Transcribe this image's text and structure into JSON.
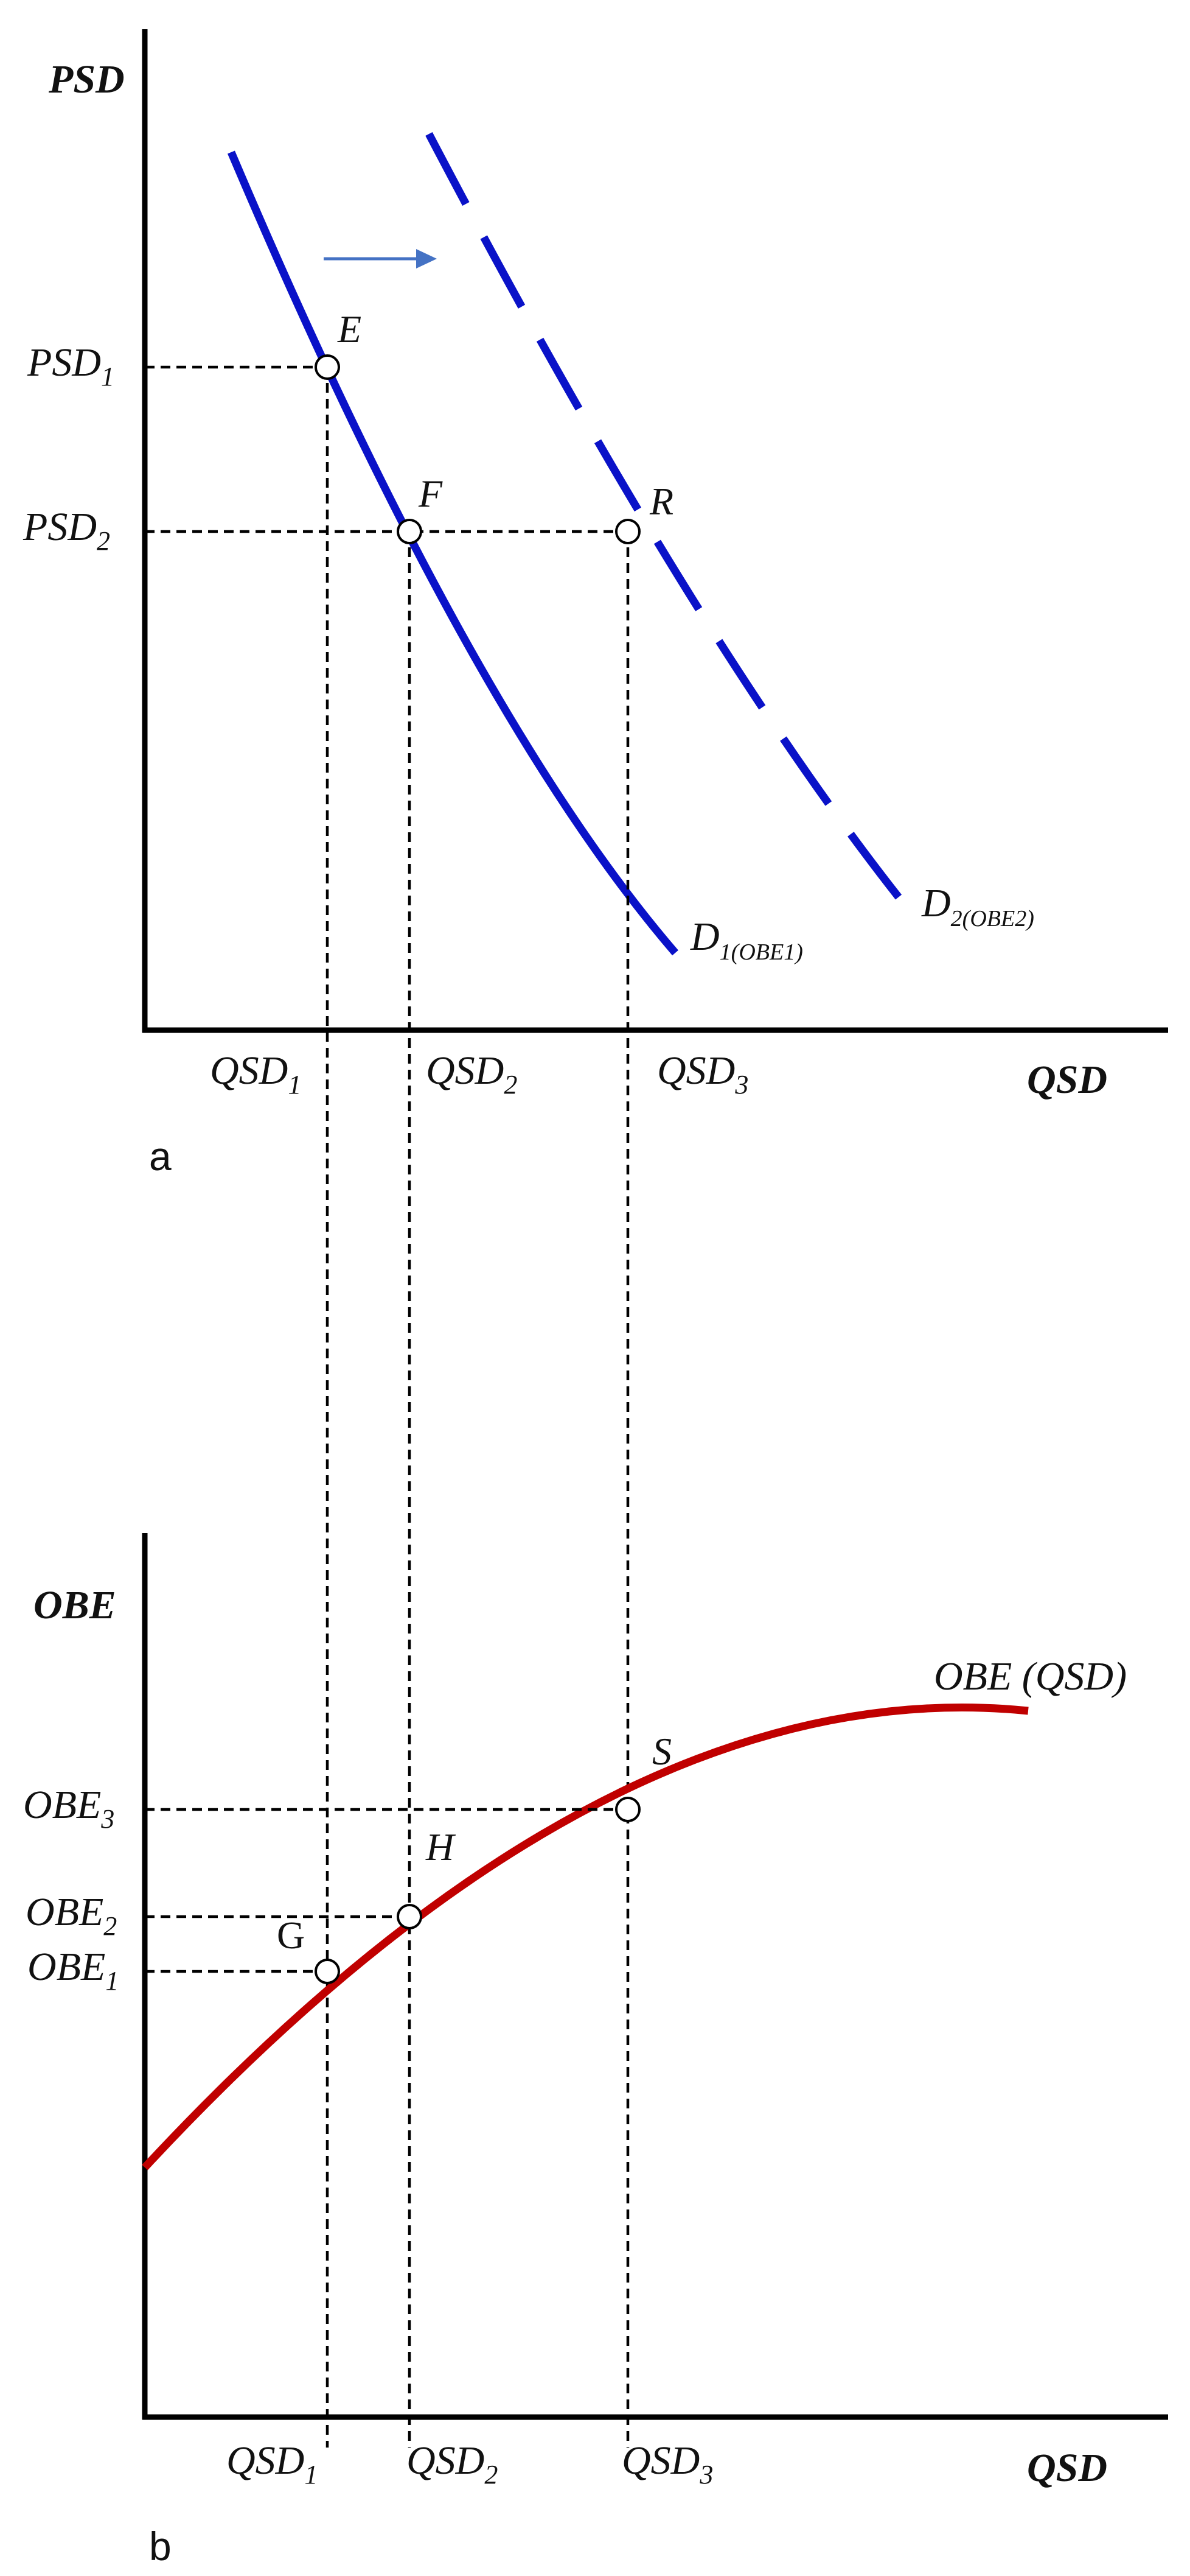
{
  "panel_a": {
    "label": "a",
    "y_axis_title": "PSD",
    "x_axis_title": "QSD",
    "y_ticks": [
      {
        "base": "PSD",
        "sub": "1"
      },
      {
        "base": "PSD",
        "sub": "2"
      }
    ],
    "x_ticks": [
      {
        "base": "QSD",
        "sub": "1"
      },
      {
        "base": "QSD",
        "sub": "2"
      },
      {
        "base": "QSD",
        "sub": "3"
      }
    ],
    "points": [
      "E",
      "F",
      "R"
    ],
    "curves": [
      {
        "base": "D",
        "sub": "1(OBE1)",
        "style": "solid",
        "color": "#0a12c8"
      },
      {
        "base": "D",
        "sub": "2(OBE2)",
        "style": "dashed",
        "color": "#0a12c8"
      }
    ],
    "shift_arrow_color": "#4472c4"
  },
  "panel_b": {
    "label": "b",
    "y_axis_title": "OBE",
    "x_axis_title": "QSD",
    "y_ticks": [
      {
        "base": "OBE",
        "sub": "3"
      },
      {
        "base": "OBE",
        "sub": "2"
      },
      {
        "base": "OBE",
        "sub": "1"
      }
    ],
    "x_ticks": [
      {
        "base": "QSD",
        "sub": "1"
      },
      {
        "base": "QSD",
        "sub": "2"
      },
      {
        "base": "QSD",
        "sub": "3"
      }
    ],
    "points": [
      "S",
      "H",
      "G"
    ],
    "curve_label": "OBE (QSD)",
    "curve_color": "#c00000"
  }
}
